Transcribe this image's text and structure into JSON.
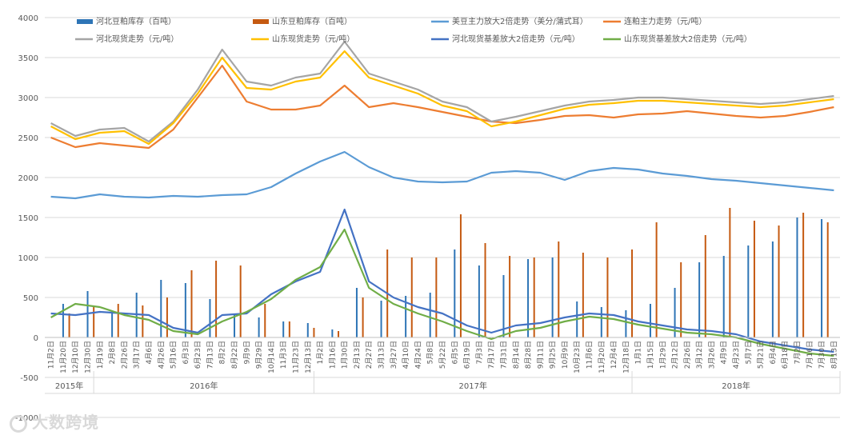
{
  "chart_data": {
    "type": "line",
    "yaxis": {
      "ticks": [
        "4000",
        "3500",
        "3000",
        "2500",
        "2000",
        "1500",
        "1000",
        "500",
        "0",
        "-500",
        "-1000"
      ],
      "ylim": [
        -1000,
        4000
      ],
      "grid": true
    },
    "legend": {
      "placement": "top",
      "entries": [
        {
          "label": "河北豆粕库存（百吨）",
          "color": "#2e75b6",
          "kind": "bar"
        },
        {
          "label": "山东豆粕库存（百吨）",
          "color": "#c55a11",
          "kind": "bar"
        },
        {
          "label": "美豆主力放大2倍走势（美分/蒲式耳）",
          "color": "#5b9bd5",
          "kind": "line"
        },
        {
          "label": "连粕主力走势（元/吨）",
          "color": "#ed7d31",
          "kind": "line"
        },
        {
          "label": "河北现货走势（元/吨）",
          "color": "#a5a5a5",
          "kind": "line"
        },
        {
          "label": "山东现货走势（元/吨）",
          "color": "#ffc000",
          "kind": "line"
        },
        {
          "label": "河北现货基差放大2倍走势（元/吨）",
          "color": "#4472c4",
          "kind": "line"
        },
        {
          "label": "山东现货基差放大2倍走势（元/吨）",
          "color": "#70ad47",
          "kind": "line"
        }
      ]
    },
    "x_dates": [
      "11月2日",
      "11月20日",
      "12月10日",
      "12月30日",
      "1月19日",
      "2月8日",
      "2月26日",
      "3月17日",
      "4月6日",
      "4月26日",
      "5月16日",
      "6月3日",
      "6月23日",
      "7月13日",
      "8月2日",
      "8月22日",
      "9月9日",
      "9月29日",
      "10月14日",
      "11月3日",
      "11月23日",
      "12月13日",
      "1月2日",
      "1月16日",
      "1月30日",
      "2月13日",
      "2月27日",
      "3月13日",
      "3月27日",
      "4月10日",
      "4月24日",
      "5月8日",
      "5月22日",
      "6月5日",
      "6月19日",
      "7月3日",
      "7月17日",
      "7月31日",
      "8月14日",
      "8月28日",
      "9月11日",
      "9月25日",
      "10月9日",
      "10月23日",
      "11月6日",
      "11月20日",
      "12月4日",
      "12月18日",
      "1月1日",
      "1月15日",
      "1月29日",
      "2月12日",
      "2月26日",
      "3月12日",
      "3月26日",
      "4月9日",
      "4月23日",
      "5月7日",
      "5月21日",
      "6月4日",
      "6月18日",
      "7月2日",
      "7月16日",
      "7月30日",
      "8月13日"
    ],
    "years": [
      "2015年",
      "2016年",
      "2017年",
      "2018年"
    ],
    "series": [
      {
        "name": "美豆主力放大2倍走势（美分/蒲式耳）",
        "color": "#5b9bd5",
        "x": [
          0,
          2,
          4,
          6,
          8,
          10,
          12,
          14,
          16,
          18,
          20,
          22,
          24,
          26,
          28,
          30,
          32,
          34,
          36,
          38,
          40,
          42,
          44,
          46,
          48,
          50,
          52,
          54,
          56,
          58,
          60,
          62,
          64
        ],
        "values": [
          1760,
          1740,
          1790,
          1760,
          1750,
          1770,
          1760,
          1780,
          1790,
          1880,
          2050,
          2200,
          2320,
          2130,
          2000,
          1950,
          1940,
          1950,
          2060,
          2080,
          2060,
          1970,
          2080,
          2120,
          2100,
          2050,
          2020,
          1980,
          1960,
          1930,
          1900,
          1870,
          1840
        ]
      },
      {
        "name": "连粕主力走势（元/吨）",
        "color": "#ed7d31",
        "x": [
          0,
          2,
          4,
          6,
          8,
          10,
          12,
          14,
          16,
          18,
          20,
          22,
          24,
          26,
          28,
          30,
          32,
          34,
          36,
          38,
          40,
          42,
          44,
          46,
          48,
          50,
          52,
          54,
          56,
          58,
          60,
          62,
          64
        ],
        "values": [
          2500,
          2380,
          2430,
          2400,
          2370,
          2600,
          3000,
          3400,
          2950,
          2850,
          2850,
          2900,
          3150,
          2880,
          2930,
          2880,
          2820,
          2760,
          2700,
          2680,
          2720,
          2770,
          2780,
          2750,
          2790,
          2800,
          2830,
          2800,
          2770,
          2750,
          2770,
          2820,
          2880
        ]
      },
      {
        "name": "河北现货走势（元/吨）",
        "color": "#a5a5a5",
        "x": [
          0,
          2,
          4,
          6,
          8,
          10,
          12,
          14,
          16,
          18,
          20,
          22,
          24,
          26,
          28,
          30,
          32,
          34,
          36,
          38,
          40,
          42,
          44,
          46,
          48,
          50,
          52,
          54,
          56,
          58,
          60,
          62,
          64
        ],
        "values": [
          2680,
          2520,
          2600,
          2620,
          2450,
          2700,
          3100,
          3600,
          3200,
          3150,
          3250,
          3300,
          3700,
          3300,
          3200,
          3100,
          2950,
          2880,
          2700,
          2760,
          2830,
          2900,
          2950,
          2970,
          3000,
          3000,
          2980,
          2960,
          2940,
          2920,
          2940,
          2980,
          3020
        ]
      },
      {
        "name": "山东现货走势（元/吨）",
        "color": "#ffc000",
        "x": [
          0,
          2,
          4,
          6,
          8,
          10,
          12,
          14,
          16,
          18,
          20,
          22,
          24,
          26,
          28,
          30,
          32,
          34,
          36,
          38,
          40,
          42,
          44,
          46,
          48,
          50,
          52,
          54,
          56,
          58,
          60,
          62,
          64
        ],
        "values": [
          2640,
          2480,
          2560,
          2580,
          2420,
          2680,
          3050,
          3500,
          3120,
          3100,
          3200,
          3250,
          3580,
          3250,
          3150,
          3050,
          2900,
          2830,
          2640,
          2700,
          2780,
          2860,
          2910,
          2930,
          2960,
          2960,
          2940,
          2920,
          2900,
          2880,
          2900,
          2940,
          2980
        ]
      },
      {
        "name": "河北现货基差放大2倍走势（元/吨）",
        "color": "#4472c4",
        "x": [
          0,
          2,
          4,
          6,
          8,
          10,
          12,
          14,
          16,
          18,
          20,
          22,
          24,
          26,
          28,
          30,
          32,
          34,
          36,
          38,
          40,
          42,
          44,
          46,
          48,
          50,
          52,
          54,
          56,
          58,
          60,
          62,
          64
        ],
        "values": [
          300,
          280,
          320,
          300,
          280,
          120,
          60,
          280,
          300,
          540,
          700,
          820,
          1600,
          700,
          500,
          380,
          300,
          150,
          60,
          150,
          180,
          250,
          300,
          280,
          200,
          150,
          100,
          80,
          40,
          -50,
          -100,
          -150,
          -180
        ]
      },
      {
        "name": "山东现货基差放大2倍走势（元/吨）",
        "color": "#70ad47",
        "x": [
          0,
          2,
          4,
          6,
          8,
          10,
          12,
          14,
          16,
          18,
          20,
          22,
          24,
          26,
          28,
          30,
          32,
          34,
          36,
          38,
          40,
          42,
          44,
          46,
          48,
          50,
          52,
          54,
          56,
          58,
          60,
          62,
          64
        ],
        "values": [
          250,
          420,
          380,
          280,
          220,
          80,
          40,
          200,
          320,
          480,
          720,
          880,
          1350,
          620,
          420,
          300,
          200,
          80,
          -20,
          80,
          120,
          200,
          260,
          230,
          160,
          110,
          60,
          40,
          0,
          -80,
          -140,
          -200,
          -230
        ]
      }
    ],
    "bar_series": [
      {
        "name": "河北豆粕库存（百吨）",
        "color": "#2e75b6",
        "x": [
          1,
          3,
          5,
          7,
          9,
          11,
          13,
          15,
          17,
          19,
          21,
          23,
          25,
          27,
          29,
          31,
          33,
          35,
          37,
          39,
          41,
          43,
          45,
          47,
          49,
          51,
          53,
          55,
          57,
          59,
          61,
          63
        ],
        "values": [
          420,
          580,
          320,
          560,
          720,
          680,
          480,
          300,
          250,
          200,
          180,
          100,
          620,
          460,
          520,
          560,
          1100,
          900,
          780,
          980,
          1000,
          450,
          380,
          340,
          420,
          620,
          940,
          1020,
          1150,
          1200,
          1500,
          1480
        ]
      },
      {
        "name": "山东豆粕库存（百吨）",
        "color": "#c55a11",
        "x": [
          1.5,
          3.5,
          5.5,
          7.5,
          9.5,
          11.5,
          13.5,
          15.5,
          17.5,
          19.5,
          21.5,
          23.5,
          25.5,
          27.5,
          29.5,
          31.5,
          33.5,
          35.5,
          37.5,
          39.5,
          41.5,
          43.5,
          45.5,
          47.5,
          49.5,
          51.5,
          53.5,
          55.5,
          57.5,
          59.5,
          61.5,
          63.5
        ],
        "values": [
          300,
          380,
          420,
          400,
          500,
          840,
          960,
          900,
          420,
          200,
          120,
          80,
          500,
          1100,
          1000,
          1000,
          1540,
          1180,
          1020,
          1000,
          1200,
          1060,
          1000,
          1100,
          1440,
          940,
          1280,
          1620,
          1460,
          1400,
          1560,
          1440
        ]
      }
    ]
  },
  "watermark": {
    "text": "大数跨境"
  }
}
